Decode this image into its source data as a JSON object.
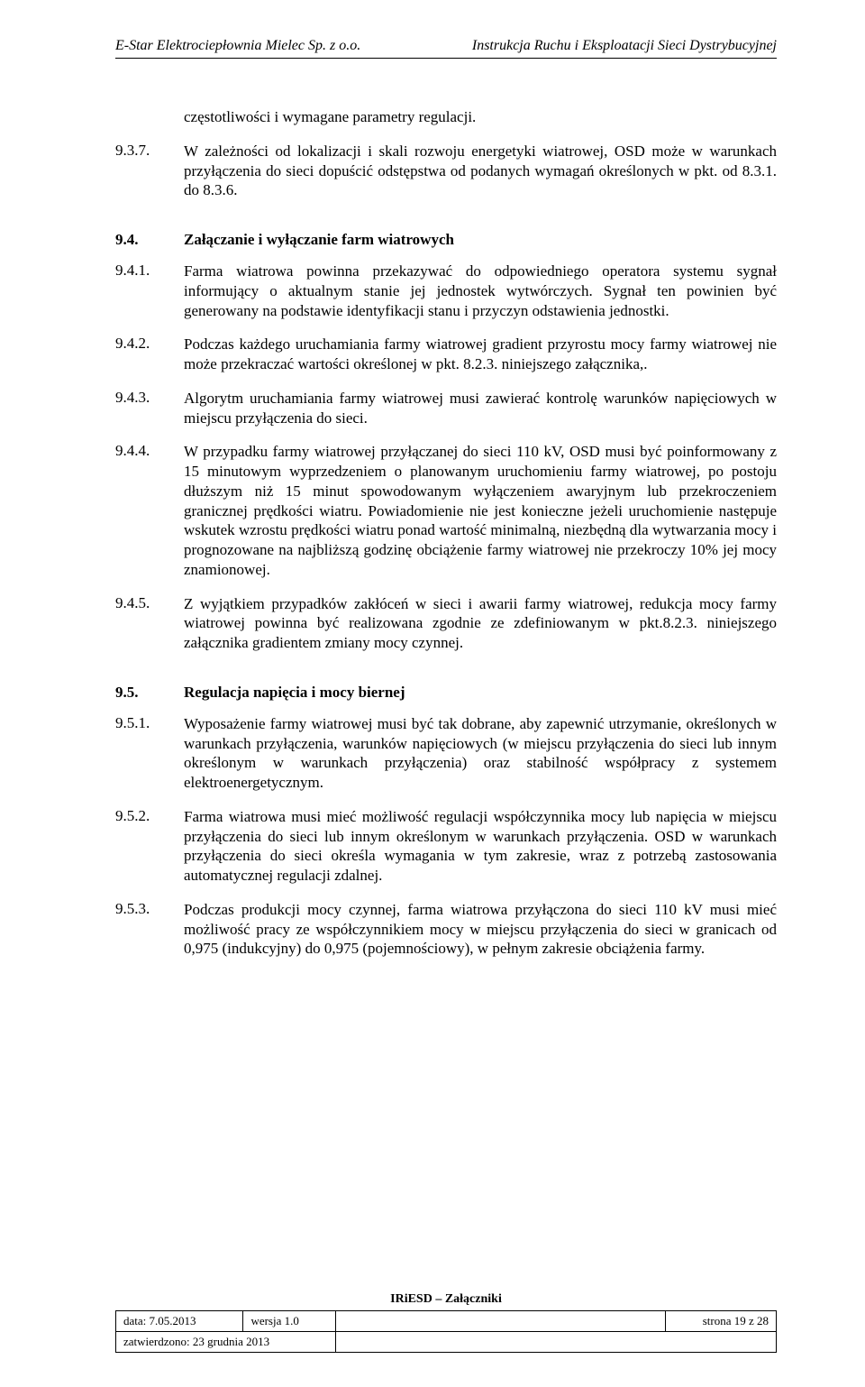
{
  "header": {
    "left": "E-Star Elektrociepłownia Mielec Sp. z o.o.",
    "right": "Instrukcja Ruchu i Eksploatacji Sieci Dystrybucyjnej"
  },
  "clauses": [
    {
      "num": "",
      "body": "częstotliwości i wymagane parametry regulacji."
    },
    {
      "num": "9.3.7.",
      "body": "W zależności od lokalizacji i skali rozwoju energetyki wiatrowej, OSD może w warunkach przyłączenia do sieci dopuścić odstępstwa od podanych wymagań określonych w pkt. od 8.3.1. do 8.3.6."
    }
  ],
  "section94": {
    "num": "9.4.",
    "title": "Załączanie i wyłączanie farm wiatrowych",
    "items": [
      {
        "num": "9.4.1.",
        "body": "Farma wiatrowa powinna przekazywać do odpowiedniego operatora systemu sygnał informujący o aktualnym stanie jej jednostek wytwórczych. Sygnał ten powinien być generowany na podstawie identyfikacji stanu i przyczyn odstawienia jednostki."
      },
      {
        "num": "9.4.2.",
        "body": "Podczas każdego uruchamiania farmy wiatrowej gradient przyrostu mocy farmy wiatrowej nie może przekraczać wartości określonej w pkt. 8.2.3. niniejszego załącznika,."
      },
      {
        "num": "9.4.3.",
        "body": "Algorytm uruchamiania farmy wiatrowej musi zawierać kontrolę warunków napięciowych w miejscu przyłączenia do sieci."
      },
      {
        "num": "9.4.4.",
        "body": "W przypadku farmy wiatrowej przyłączanej do sieci 110 kV, OSD musi być poinformowany z 15 minutowym wyprzedzeniem o planowanym uruchomieniu farmy wiatrowej, po postoju dłuższym niż 15 minut spowodowanym wyłączeniem awaryjnym lub przekroczeniem granicznej prędkości wiatru. Powiadomienie nie jest konieczne jeżeli uruchomienie następuje wskutek wzrostu prędkości wiatru ponad wartość minimalną, niezbędną dla wytwarzania mocy i prognozowane na najbliższą godzinę obciążenie farmy wiatrowej nie przekroczy 10% jej mocy znamionowej."
      },
      {
        "num": "9.4.5.",
        "body": "Z wyjątkiem przypadków zakłóceń w sieci i awarii farmy wiatrowej, redukcja mocy farmy wiatrowej powinna być realizowana zgodnie ze zdefiniowanym w pkt.8.2.3. niniejszego załącznika gradientem zmiany mocy czynnej."
      }
    ]
  },
  "section95": {
    "num": "9.5.",
    "title": "Regulacja napięcia i mocy biernej",
    "items": [
      {
        "num": "9.5.1.",
        "body": "Wyposażenie farmy wiatrowej musi być tak dobrane, aby zapewnić utrzymanie, określonych w warunkach przyłączenia, warunków napięciowych (w miejscu przyłączenia do sieci lub innym określonym w warunkach przyłączenia) oraz stabilność współpracy z systemem elektroenergetycznym."
      },
      {
        "num": "9.5.2.",
        "body": "Farma wiatrowa musi mieć możliwość regulacji współczynnika mocy lub napięcia w miejscu przyłączenia do sieci lub innym określonym w warunkach przyłączenia. OSD w warunkach przyłączenia do sieci określa wymagania w tym zakresie, wraz z potrzebą zastosowania automatycznej regulacji zdalnej."
      },
      {
        "num": "9.5.3.",
        "body": "Podczas produkcji mocy czynnej, farma wiatrowa przyłączona do sieci 110 kV musi mieć możliwość pracy ze współczynnikiem mocy w miejscu przyłączenia do sieci w granicach od 0,975 (indukcyjny) do 0,975 (pojemnościowy), w pełnym zakresie obciążenia farmy."
      }
    ]
  },
  "footer": {
    "title": "IRiESD – Załączniki",
    "date": "data: 7.05.2013",
    "version": "wersja 1.0",
    "page": "strona 19 z 28",
    "approved": "zatwierdzono: 23 grudnia 2013"
  }
}
